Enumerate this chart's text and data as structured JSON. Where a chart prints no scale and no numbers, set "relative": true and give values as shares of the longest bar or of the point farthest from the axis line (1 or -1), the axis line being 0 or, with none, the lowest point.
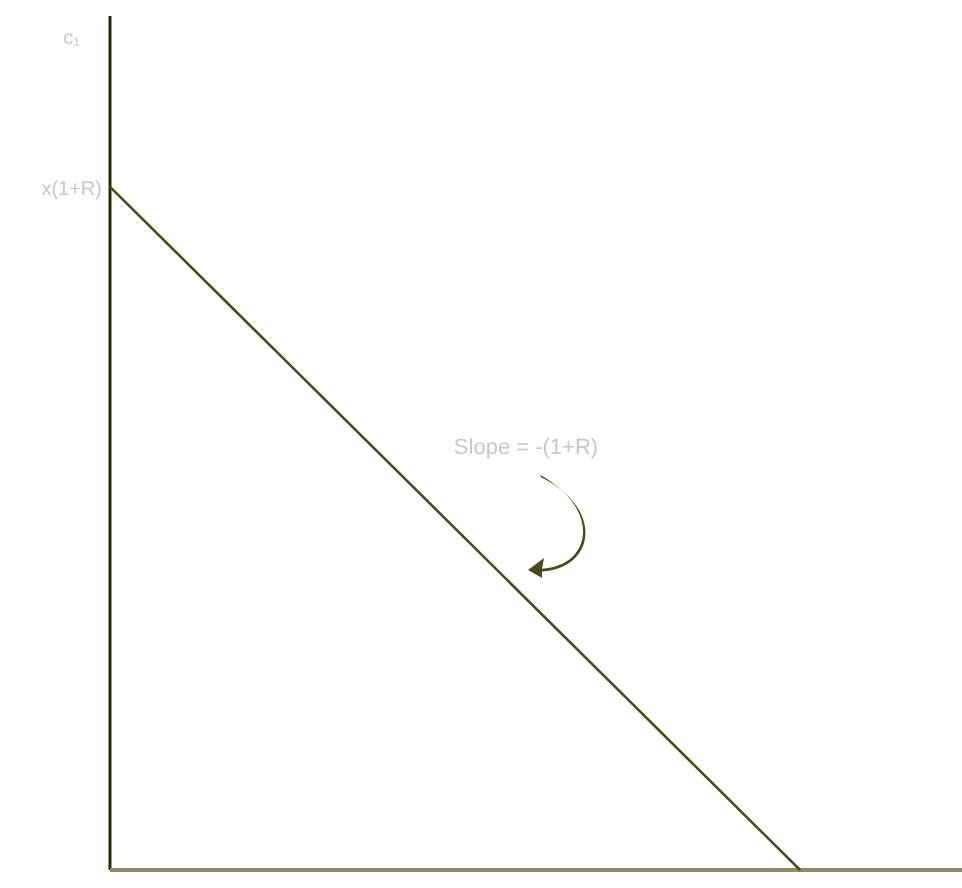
{
  "chart_data": {
    "type": "line",
    "relative": true,
    "categories": [
      null,
      null,
      null,
      null,
      null
    ],
    "series": [
      {
        "color": "#4a4a1c",
        "values": [
          1,
          0.75,
          0.5,
          0.25,
          0
        ]
      }
    ],
    "annotations": [
      "c₁",
      "x(1+R)",
      "Slope = -(1+R)"
    ]
  }
}
